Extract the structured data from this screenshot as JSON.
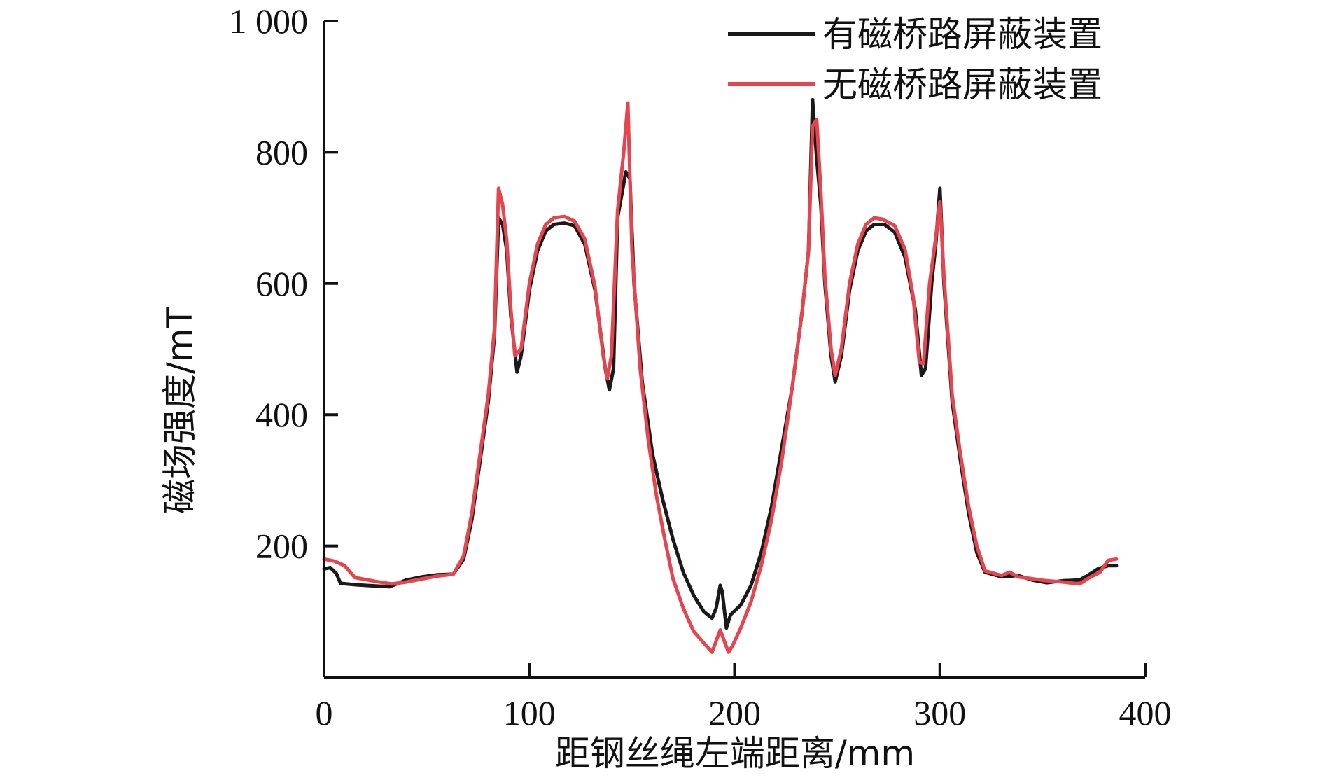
{
  "chart_data": {
    "type": "line",
    "title": "",
    "xlabel": "距钢丝绳左端距离/mm",
    "ylabel": "磁场强度/mT",
    "xlim": [
      0,
      400
    ],
    "ylim": [
      0,
      1000
    ],
    "xticks": [
      0,
      100,
      200,
      300,
      400
    ],
    "xtick_labels": [
      "0",
      "100",
      "200",
      "300",
      "400"
    ],
    "yticks": [
      200,
      400,
      600,
      800,
      1000
    ],
    "ytick_labels": [
      "200",
      "400",
      "600",
      "800",
      "1 000"
    ],
    "grid": false,
    "legend_position": "top-right",
    "series": [
      {
        "name": "有磁桥路屏蔽装置",
        "color": "#1a1a1a",
        "points": [
          [
            0,
            165
          ],
          [
            3,
            167
          ],
          [
            6,
            158
          ],
          [
            8,
            143
          ],
          [
            15,
            141
          ],
          [
            25,
            139
          ],
          [
            32,
            138
          ],
          [
            40,
            148
          ],
          [
            48,
            153
          ],
          [
            55,
            156
          ],
          [
            63,
            157
          ],
          [
            68,
            180
          ],
          [
            72,
            240
          ],
          [
            76,
            330
          ],
          [
            80,
            420
          ],
          [
            83,
            520
          ],
          [
            85,
            700
          ],
          [
            87,
            690
          ],
          [
            89,
            650
          ],
          [
            91,
            550
          ],
          [
            94,
            465
          ],
          [
            96,
            490
          ],
          [
            100,
            590
          ],
          [
            104,
            650
          ],
          [
            108,
            680
          ],
          [
            112,
            690
          ],
          [
            117,
            692
          ],
          [
            122,
            688
          ],
          [
            127,
            660
          ],
          [
            132,
            590
          ],
          [
            137,
            470
          ],
          [
            139,
            438
          ],
          [
            141,
            470
          ],
          [
            143,
            700
          ],
          [
            147,
            770
          ],
          [
            149,
            760
          ],
          [
            151,
            600
          ],
          [
            155,
            450
          ],
          [
            160,
            340
          ],
          [
            165,
            270
          ],
          [
            170,
            210
          ],
          [
            175,
            160
          ],
          [
            180,
            125
          ],
          [
            185,
            100
          ],
          [
            189,
            90
          ],
          [
            191,
            105
          ],
          [
            193,
            140
          ],
          [
            194,
            130
          ],
          [
            196,
            75
          ],
          [
            198,
            95
          ],
          [
            203,
            110
          ],
          [
            208,
            140
          ],
          [
            213,
            190
          ],
          [
            218,
            260
          ],
          [
            223,
            350
          ],
          [
            228,
            440
          ],
          [
            233,
            560
          ],
          [
            236,
            650
          ],
          [
            238,
            880
          ],
          [
            240,
            790
          ],
          [
            242,
            720
          ],
          [
            244,
            600
          ],
          [
            247,
            490
          ],
          [
            249,
            450
          ],
          [
            252,
            490
          ],
          [
            256,
            590
          ],
          [
            260,
            650
          ],
          [
            264,
            680
          ],
          [
            268,
            690
          ],
          [
            273,
            690
          ],
          [
            278,
            678
          ],
          [
            283,
            640
          ],
          [
            288,
            560
          ],
          [
            291,
            460
          ],
          [
            293,
            470
          ],
          [
            296,
            600
          ],
          [
            298,
            660
          ],
          [
            300,
            745
          ],
          [
            302,
            600
          ],
          [
            306,
            420
          ],
          [
            310,
            330
          ],
          [
            314,
            250
          ],
          [
            318,
            190
          ],
          [
            322,
            160
          ],
          [
            330,
            153
          ],
          [
            338,
            155
          ],
          [
            345,
            148
          ],
          [
            352,
            144
          ],
          [
            360,
            147
          ],
          [
            368,
            148
          ],
          [
            372,
            155
          ],
          [
            377,
            165
          ],
          [
            382,
            170
          ],
          [
            386,
            170
          ]
        ]
      },
      {
        "name": "无磁桥路屏蔽装置",
        "color": "#e5454e",
        "points": [
          [
            0,
            180
          ],
          [
            5,
            177
          ],
          [
            10,
            170
          ],
          [
            15,
            152
          ],
          [
            25,
            146
          ],
          [
            33,
            142
          ],
          [
            40,
            145
          ],
          [
            48,
            150
          ],
          [
            55,
            154
          ],
          [
            63,
            157
          ],
          [
            68,
            185
          ],
          [
            72,
            250
          ],
          [
            76,
            340
          ],
          [
            80,
            430
          ],
          [
            83,
            530
          ],
          [
            85,
            745
          ],
          [
            87,
            720
          ],
          [
            89,
            665
          ],
          [
            91,
            560
          ],
          [
            93,
            490
          ],
          [
            96,
            500
          ],
          [
            100,
            600
          ],
          [
            104,
            660
          ],
          [
            108,
            690
          ],
          [
            112,
            700
          ],
          [
            117,
            702
          ],
          [
            122,
            695
          ],
          [
            127,
            668
          ],
          [
            132,
            595
          ],
          [
            136,
            490
          ],
          [
            138,
            455
          ],
          [
            140,
            490
          ],
          [
            143,
            710
          ],
          [
            146,
            800
          ],
          [
            148,
            875
          ],
          [
            150,
            650
          ],
          [
            154,
            470
          ],
          [
            158,
            360
          ],
          [
            162,
            275
          ],
          [
            166,
            210
          ],
          [
            170,
            150
          ],
          [
            175,
            105
          ],
          [
            180,
            70
          ],
          [
            185,
            52
          ],
          [
            189,
            38
          ],
          [
            191,
            55
          ],
          [
            193,
            72
          ],
          [
            195,
            55
          ],
          [
            197,
            38
          ],
          [
            199,
            48
          ],
          [
            203,
            75
          ],
          [
            208,
            115
          ],
          [
            213,
            170
          ],
          [
            218,
            240
          ],
          [
            223,
            330
          ],
          [
            228,
            440
          ],
          [
            233,
            560
          ],
          [
            236,
            650
          ],
          [
            238,
            840
          ],
          [
            240,
            850
          ],
          [
            242,
            740
          ],
          [
            244,
            610
          ],
          [
            247,
            500
          ],
          [
            249,
            460
          ],
          [
            252,
            500
          ],
          [
            256,
            600
          ],
          [
            260,
            660
          ],
          [
            264,
            690
          ],
          [
            268,
            700
          ],
          [
            272,
            698
          ],
          [
            278,
            688
          ],
          [
            283,
            652
          ],
          [
            287,
            580
          ],
          [
            290,
            480
          ],
          [
            292,
            478
          ],
          [
            295,
            600
          ],
          [
            298,
            670
          ],
          [
            300,
            725
          ],
          [
            302,
            610
          ],
          [
            306,
            430
          ],
          [
            310,
            340
          ],
          [
            314,
            260
          ],
          [
            318,
            200
          ],
          [
            322,
            162
          ],
          [
            330,
            155
          ],
          [
            334,
            160
          ],
          [
            338,
            153
          ],
          [
            345,
            150
          ],
          [
            352,
            147
          ],
          [
            360,
            145
          ],
          [
            368,
            142
          ],
          [
            373,
            152
          ],
          [
            378,
            160
          ],
          [
            382,
            178
          ],
          [
            386,
            180
          ]
        ]
      }
    ]
  }
}
